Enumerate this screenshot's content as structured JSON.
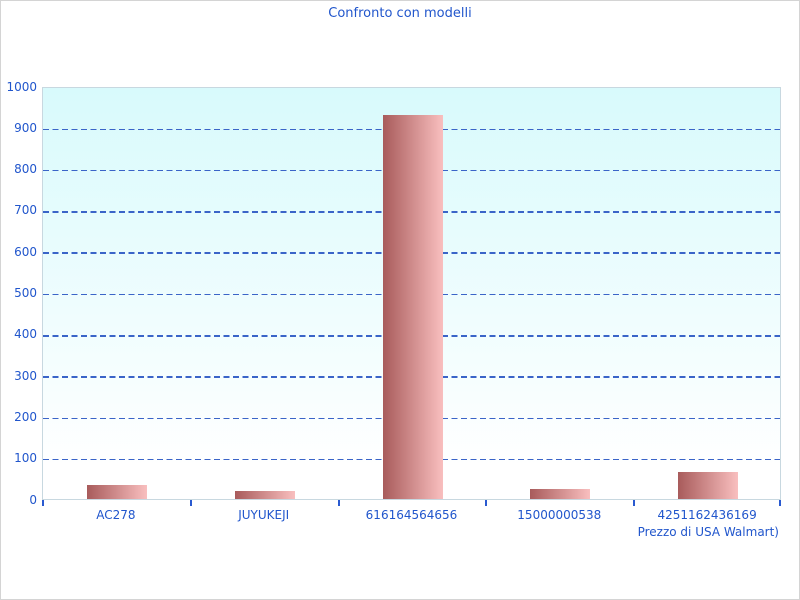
{
  "chart_data": {
    "type": "bar",
    "title": "Confronto con modelli",
    "categories": [
      "AC278",
      "JUYUKEJI",
      "616164564656",
      "15000000538",
      "4251162436169"
    ],
    "values": [
      35,
      20,
      930,
      25,
      65
    ],
    "xlabel": "Prezzo di USA Walmart)",
    "ylabel": "",
    "ylim": [
      0,
      1000
    ],
    "ytick_step": 100,
    "grid": "horizontal-dashed",
    "legend_position": "none",
    "colors": {
      "title_text": "#2156cc",
      "axis_text": "#2156cc",
      "gridline": "#3a64c8",
      "tick": "#2a5ad0",
      "plot_border": "#c8d8e0",
      "plot_bg_top": "#d8fafc",
      "plot_bg_bottom": "#ffffff",
      "bar_left": "#a85b5b",
      "bar_right": "#f9bfbf",
      "figure_border": "#d4d4d4"
    }
  }
}
